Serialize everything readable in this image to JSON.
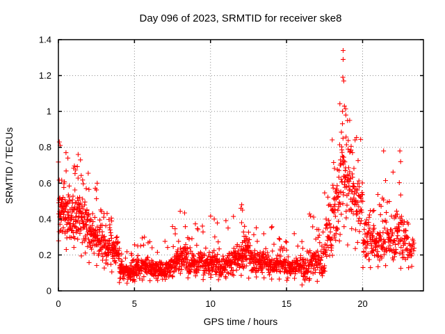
{
  "figure": {
    "background": "#ffffff"
  },
  "chart_data": {
    "type": "scatter",
    "title": "Day 096 of 2023, SRMTID for receiver ske8",
    "xlabel": "GPS time / hours",
    "ylabel": "SRMTID / TECUs",
    "xlim": [
      0,
      24
    ],
    "ylim": [
      0,
      1.4
    ],
    "xticks": [
      0,
      5,
      10,
      15,
      20
    ],
    "xtick_labels": [
      "0",
      "5",
      "10",
      "15",
      "20"
    ],
    "yticks": [
      0,
      0.2,
      0.4,
      0.6,
      0.8,
      1,
      1.2,
      1.4
    ],
    "ytick_labels": [
      "0",
      "0.2",
      "0.4",
      "0.6",
      "0.8",
      "1",
      "1.2",
      "1.4"
    ],
    "grid": true,
    "grid_style": "dotted",
    "legend": "none",
    "marker": {
      "shape": "plus",
      "color": "#ff0000",
      "size": 7
    },
    "axis_color": "#000000",
    "grid_color": "#888888",
    "seed": 96,
    "point_model": {
      "note": "Dense red '+' scatter (~2000 pts) summarized as half-hour bins: [x_start, x_end, count, y_mean, y_min, y_max]. High early-morning values (0-2h, up to 0.83), low midday band (~0.1), large disturbance spike 18-20h peaking at 1.34 TECUs.",
      "bins": [
        [
          0.0,
          0.5,
          55,
          0.44,
          0.26,
          0.72
        ],
        [
          0.5,
          1.0,
          50,
          0.41,
          0.22,
          0.68
        ],
        [
          1.0,
          1.5,
          50,
          0.4,
          0.22,
          0.7
        ],
        [
          1.5,
          2.0,
          50,
          0.36,
          0.18,
          0.66
        ],
        [
          2.0,
          2.5,
          50,
          0.31,
          0.15,
          0.58
        ],
        [
          2.5,
          3.0,
          45,
          0.28,
          0.13,
          0.52
        ],
        [
          3.0,
          3.5,
          45,
          0.25,
          0.12,
          0.44
        ],
        [
          3.5,
          4.0,
          45,
          0.21,
          0.1,
          0.4
        ],
        [
          4.0,
          4.5,
          58,
          0.11,
          0.04,
          0.24
        ],
        [
          4.5,
          5.0,
          58,
          0.1,
          0.04,
          0.22
        ],
        [
          5.0,
          5.5,
          45,
          0.12,
          0.05,
          0.26
        ],
        [
          5.5,
          6.0,
          42,
          0.13,
          0.06,
          0.3
        ],
        [
          6.0,
          6.5,
          42,
          0.12,
          0.05,
          0.28
        ],
        [
          6.5,
          7.0,
          40,
          0.11,
          0.05,
          0.22
        ],
        [
          7.0,
          7.5,
          42,
          0.13,
          0.06,
          0.28
        ],
        [
          7.5,
          8.0,
          45,
          0.16,
          0.07,
          0.36
        ],
        [
          8.0,
          8.5,
          45,
          0.18,
          0.08,
          0.45
        ],
        [
          8.5,
          9.0,
          42,
          0.15,
          0.07,
          0.3
        ],
        [
          9.0,
          9.5,
          42,
          0.16,
          0.07,
          0.38
        ],
        [
          9.5,
          10.0,
          42,
          0.15,
          0.06,
          0.33
        ],
        [
          10.0,
          10.5,
          42,
          0.15,
          0.06,
          0.42
        ],
        [
          10.5,
          11.0,
          40,
          0.13,
          0.06,
          0.28
        ],
        [
          11.0,
          11.5,
          42,
          0.16,
          0.07,
          0.4
        ],
        [
          11.5,
          12.0,
          45,
          0.18,
          0.08,
          0.42
        ],
        [
          12.0,
          12.5,
          50,
          0.22,
          0.08,
          0.47
        ],
        [
          12.5,
          13.0,
          42,
          0.16,
          0.07,
          0.33
        ],
        [
          13.0,
          13.5,
          42,
          0.17,
          0.07,
          0.36
        ],
        [
          13.5,
          14.0,
          40,
          0.15,
          0.06,
          0.32
        ],
        [
          14.0,
          14.5,
          40,
          0.14,
          0.06,
          0.36
        ],
        [
          14.5,
          15.0,
          40,
          0.14,
          0.06,
          0.3
        ],
        [
          15.0,
          15.5,
          40,
          0.13,
          0.05,
          0.28
        ],
        [
          15.5,
          16.0,
          40,
          0.14,
          0.06,
          0.32
        ],
        [
          16.0,
          16.5,
          40,
          0.12,
          0.03,
          0.28
        ],
        [
          16.5,
          17.0,
          40,
          0.17,
          0.05,
          0.44
        ],
        [
          17.0,
          17.5,
          40,
          0.16,
          0.05,
          0.35
        ],
        [
          17.5,
          18.0,
          40,
          0.28,
          0.1,
          0.55
        ],
        [
          18.0,
          18.5,
          46,
          0.45,
          0.18,
          0.85
        ],
        [
          18.5,
          19.0,
          52,
          0.62,
          0.28,
          1.05
        ],
        [
          19.0,
          19.5,
          46,
          0.56,
          0.25,
          0.97
        ],
        [
          19.5,
          20.0,
          40,
          0.45,
          0.22,
          0.86
        ],
        [
          20.0,
          20.5,
          40,
          0.3,
          0.13,
          0.5
        ],
        [
          20.5,
          21.0,
          40,
          0.25,
          0.12,
          0.45
        ],
        [
          21.0,
          21.5,
          36,
          0.26,
          0.12,
          0.55
        ],
        [
          21.5,
          22.0,
          36,
          0.3,
          0.14,
          0.62
        ],
        [
          22.0,
          22.5,
          38,
          0.33,
          0.15,
          0.68
        ],
        [
          22.5,
          23.0,
          38,
          0.28,
          0.12,
          0.55
        ],
        [
          23.0,
          23.4,
          20,
          0.22,
          0.12,
          0.38
        ]
      ],
      "outliers": [
        [
          0.06,
          0.83
        ],
        [
          0.12,
          0.81
        ],
        [
          0.5,
          0.77
        ],
        [
          0.62,
          0.74
        ],
        [
          1.3,
          0.76
        ],
        [
          1.45,
          0.73
        ],
        [
          2.55,
          0.6
        ],
        [
          12.05,
          0.48
        ],
        [
          12.1,
          0.45
        ],
        [
          18.72,
          1.34
        ],
        [
          18.72,
          1.29
        ],
        [
          18.7,
          1.19
        ],
        [
          18.76,
          1.17
        ],
        [
          18.8,
          1.03
        ],
        [
          18.68,
          1.0
        ],
        [
          18.9,
          0.98
        ],
        [
          19.15,
          0.95
        ],
        [
          19.6,
          0.855
        ],
        [
          21.38,
          0.78
        ],
        [
          22.45,
          0.78
        ],
        [
          22.5,
          0.72
        ]
      ]
    }
  }
}
